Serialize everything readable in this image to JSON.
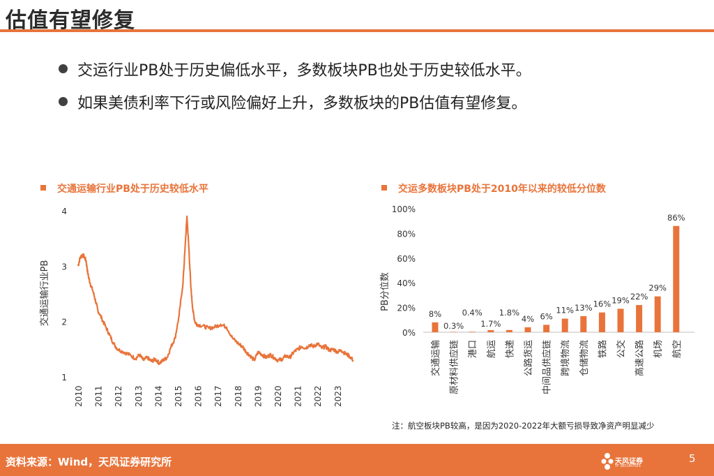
{
  "page": {
    "title": "估值有望修复",
    "bullets": [
      "交运行业PB处于历史偏低水平，多数板块PB也处于历史较低水平。",
      "如果美债利率下行或风险偏好上升，多数板块的PB估值有望修复。"
    ],
    "note": "注：航空板块PB较高，是因为2020-2022年大额亏损导致净资产明显减少",
    "footer_source": "资料来源：Wind，天风证券研究所",
    "logo_text": "天风证券",
    "logo_sub": "TF SECURITIES",
    "page_number": "5",
    "colors": {
      "accent": "#E8743B",
      "text": "#222222"
    }
  },
  "chart_data": [
    {
      "type": "line",
      "title": "交通运输行业PB处于历史较低水平",
      "xlabel": "",
      "ylabel": "交通运输行业PB",
      "ylim": [
        1,
        4
      ],
      "yticks": [
        "1",
        "2",
        "3",
        "4"
      ],
      "xticks": [
        "2010",
        "2011",
        "2012",
        "2013",
        "2014",
        "2015",
        "2016",
        "2017",
        "2018",
        "2019",
        "2020",
        "2021",
        "2022",
        "2023"
      ],
      "series": [
        {
          "name": "交通运输行业PB",
          "x": [
            2010.0,
            2010.1,
            2010.2,
            2010.3,
            2010.4,
            2010.5,
            2010.6,
            2010.75,
            2010.9,
            2011.0,
            2011.2,
            2011.4,
            2011.6,
            2011.8,
            2012.0,
            2012.3,
            2012.6,
            2012.9,
            2013.1,
            2013.3,
            2013.5,
            2013.7,
            2013.9,
            2014.1,
            2014.3,
            2014.5,
            2014.7,
            2014.9,
            2015.1,
            2015.3,
            2015.4,
            2015.5,
            2015.6,
            2015.7,
            2015.8,
            2015.9,
            2016.0,
            2016.3,
            2016.6,
            2016.9,
            2017.2,
            2017.5,
            2017.8,
            2018.1,
            2018.3,
            2018.5,
            2018.7,
            2018.9,
            2019.1,
            2019.3,
            2019.5,
            2019.7,
            2019.9,
            2020.1,
            2020.3,
            2020.5,
            2020.7,
            2020.9,
            2021.1,
            2021.3,
            2021.5,
            2021.7,
            2021.9,
            2022.1,
            2022.3,
            2022.5,
            2022.7,
            2022.9,
            2023.1,
            2023.3,
            2023.5,
            2023.7,
            2023.9
          ],
          "y": [
            3.0,
            3.15,
            3.2,
            3.18,
            3.1,
            2.85,
            2.7,
            2.55,
            2.35,
            2.2,
            2.05,
            1.9,
            1.75,
            1.6,
            1.5,
            1.45,
            1.4,
            1.33,
            1.4,
            1.3,
            1.35,
            1.28,
            1.32,
            1.25,
            1.3,
            1.35,
            1.55,
            1.7,
            2.1,
            2.7,
            3.3,
            3.9,
            3.3,
            2.6,
            2.2,
            2.0,
            1.95,
            1.92,
            1.88,
            1.9,
            1.95,
            1.9,
            1.7,
            1.6,
            1.55,
            1.45,
            1.38,
            1.3,
            1.45,
            1.4,
            1.35,
            1.4,
            1.35,
            1.3,
            1.32,
            1.38,
            1.35,
            1.45,
            1.5,
            1.55,
            1.52,
            1.58,
            1.55,
            1.6,
            1.52,
            1.55,
            1.48,
            1.5,
            1.45,
            1.48,
            1.42,
            1.38,
            1.3
          ]
        }
      ]
    },
    {
      "type": "bar",
      "title": "交运多数板块PB处于2010年以来的较低分位数",
      "xlabel": "",
      "ylabel": "PB分位数",
      "ylim": [
        0,
        100
      ],
      "yticks": [
        "0%",
        "20%",
        "40%",
        "60%",
        "80%",
        "100%"
      ],
      "categories": [
        "交通运输",
        "原材料供应链",
        "港口",
        "航运",
        "快递",
        "公路货运",
        "中间品供应链",
        "跨境物流",
        "仓储物流",
        "铁路",
        "公交",
        "高速公路",
        "机场",
        "航空"
      ],
      "values": [
        8,
        0.3,
        0.4,
        1.7,
        1.8,
        4,
        6,
        11,
        13,
        16,
        19,
        22,
        29,
        86
      ],
      "labels": [
        "8%",
        "0.3%",
        "0.4%",
        "1.7%",
        "1.8%",
        "4%",
        "6%",
        "11%",
        "13%",
        "16%",
        "19%",
        "22%",
        "29%",
        "86%"
      ]
    }
  ]
}
